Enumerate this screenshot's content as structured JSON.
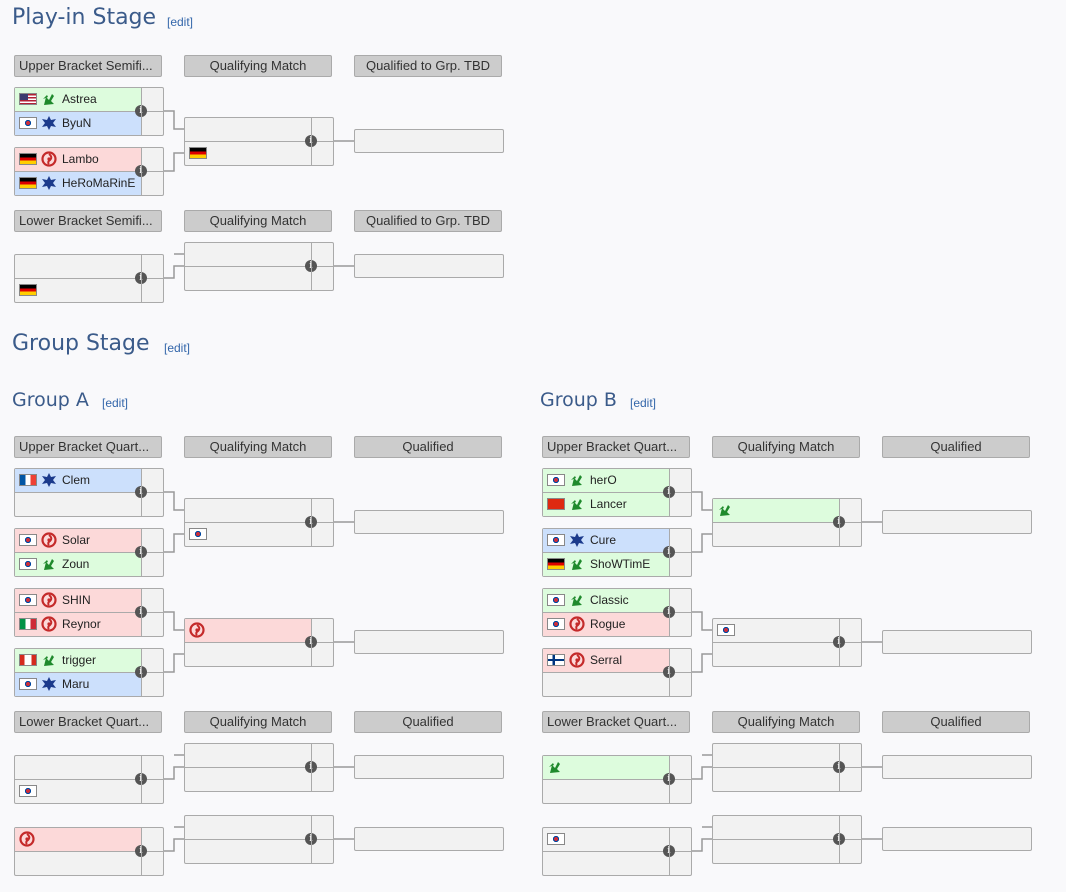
{
  "edit_label": "[edit]",
  "info_glyph": "i",
  "colors": {
    "heading": "#3b5b8a",
    "link": "#3366aa",
    "header_bg": "#cccccc",
    "winner_bg": "#ddfcdd",
    "terran_bg": "#cce0fc",
    "zerg_bg": "#fcd9d9",
    "slot_bg": "#f2f2f2",
    "line": "#999999"
  },
  "race_icons": {
    "protoss": "protoss-icon",
    "terran": "terran-icon",
    "zerg": "zerg-icon"
  },
  "flag_icons": {
    "us": "flag-us-icon",
    "kr": "flag-kr-icon",
    "de": "flag-de-icon",
    "fr": "flag-fr-icon",
    "it": "flag-it-icon",
    "ca": "flag-ca-icon",
    "cn": "flag-cn-icon",
    "fi": "flag-fi-icon"
  },
  "playin": {
    "title": "Play-in Stage",
    "upper": {
      "col1": "Upper Bracket Semifi...",
      "col2": "Qualifying Match",
      "col3": "Qualified to Grp. TBD",
      "sf1": {
        "top": {
          "name": "Astrea",
          "flag": "us",
          "race": "protoss",
          "hl": "win"
        },
        "bot": {
          "name": "ByuN",
          "flag": "kr",
          "race": "terran",
          "hl": "terran"
        }
      },
      "sf2": {
        "top": {
          "name": "Lambo",
          "flag": "de",
          "race": "zerg",
          "hl": "zerg"
        },
        "bot": {
          "name": "HeRoMaRinE",
          "flag": "de",
          "race": "terran",
          "hl": "terran"
        }
      },
      "qm": {
        "top": {
          "name": "",
          "flag": "",
          "race": "",
          "hl": ""
        },
        "bot": {
          "name": "",
          "flag": "de",
          "race": "",
          "hl": ""
        }
      }
    },
    "lower": {
      "col1": "Lower Bracket Semifi...",
      "col2": "Qualifying Match",
      "col3": "Qualified to Grp. TBD",
      "r1": {
        "top": {
          "name": "",
          "flag": "",
          "race": "",
          "hl": ""
        },
        "bot": {
          "name": "",
          "flag": "de",
          "race": "",
          "hl": ""
        }
      },
      "qm": {
        "top": {
          "name": "",
          "flag": "",
          "race": "",
          "hl": ""
        },
        "bot": {
          "name": "",
          "flag": "",
          "race": "",
          "hl": ""
        }
      }
    }
  },
  "group_stage": {
    "title": "Group Stage"
  },
  "group_a": {
    "title": "Group A",
    "upper": {
      "col1": "Upper Bracket Quart...",
      "col2": "Qualifying Match",
      "col3": "Qualified",
      "q1": {
        "top": {
          "name": "Clem",
          "flag": "fr",
          "race": "terran",
          "hl": "terran"
        },
        "bot": {
          "name": "",
          "flag": "",
          "race": "",
          "hl": ""
        }
      },
      "q2": {
        "top": {
          "name": "Solar",
          "flag": "kr",
          "race": "zerg",
          "hl": "zerg"
        },
        "bot": {
          "name": "Zoun",
          "flag": "kr",
          "race": "protoss",
          "hl": "win"
        }
      },
      "q3": {
        "top": {
          "name": "SHIN",
          "flag": "kr",
          "race": "zerg",
          "hl": "zerg"
        },
        "bot": {
          "name": "Reynor",
          "flag": "it",
          "race": "zerg",
          "hl": "zerg"
        }
      },
      "q4": {
        "top": {
          "name": "trigger",
          "flag": "ca",
          "race": "protoss",
          "hl": "win"
        },
        "bot": {
          "name": "Maru",
          "flag": "kr",
          "race": "terran",
          "hl": "terran"
        }
      },
      "qm1": {
        "top": {
          "name": "",
          "flag": "",
          "race": "",
          "hl": ""
        },
        "bot": {
          "name": "",
          "flag": "kr",
          "race": "",
          "hl": ""
        }
      },
      "qm2": {
        "top": {
          "name": "",
          "flag": "",
          "race": "zerg",
          "hl": "zerg"
        },
        "bot": {
          "name": "",
          "flag": "",
          "race": "",
          "hl": ""
        }
      }
    },
    "lower": {
      "col1": "Lower Bracket Quart...",
      "col2": "Qualifying Match",
      "col3": "Qualified",
      "r1": {
        "top": {
          "name": "",
          "flag": "",
          "race": "",
          "hl": ""
        },
        "bot": {
          "name": "",
          "flag": "kr",
          "race": "",
          "hl": ""
        }
      },
      "r2": {
        "top": {
          "name": "",
          "flag": "",
          "race": "zerg",
          "hl": "zerg"
        },
        "bot": {
          "name": "",
          "flag": "",
          "race": "",
          "hl": ""
        }
      },
      "qm1": {
        "top": {
          "name": "",
          "flag": "",
          "race": "",
          "hl": ""
        },
        "bot": {
          "name": "",
          "flag": "",
          "race": "",
          "hl": ""
        }
      },
      "qm2": {
        "top": {
          "name": "",
          "flag": "",
          "race": "",
          "hl": ""
        },
        "bot": {
          "name": "",
          "flag": "",
          "race": "",
          "hl": ""
        }
      }
    }
  },
  "group_b": {
    "title": "Group B",
    "upper": {
      "col1": "Upper Bracket Quart...",
      "col2": "Qualifying Match",
      "col3": "Qualified",
      "q1": {
        "top": {
          "name": "herO",
          "flag": "kr",
          "race": "protoss",
          "hl": "win"
        },
        "bot": {
          "name": "Lancer",
          "flag": "cn",
          "race": "protoss",
          "hl": "win"
        }
      },
      "q2": {
        "top": {
          "name": "Cure",
          "flag": "kr",
          "race": "terran",
          "hl": "terran"
        },
        "bot": {
          "name": "ShoWTimE",
          "flag": "de",
          "race": "protoss",
          "hl": "win"
        }
      },
      "q3": {
        "top": {
          "name": "Classic",
          "flag": "kr",
          "race": "protoss",
          "hl": "win"
        },
        "bot": {
          "name": "Rogue",
          "flag": "kr",
          "race": "zerg",
          "hl": "zerg"
        }
      },
      "q4": {
        "top": {
          "name": "Serral",
          "flag": "fi",
          "race": "zerg",
          "hl": "zerg"
        },
        "bot": {
          "name": "",
          "flag": "",
          "race": "",
          "hl": ""
        }
      },
      "qm1": {
        "top": {
          "name": "",
          "flag": "",
          "race": "protoss",
          "hl": "win"
        },
        "bot": {
          "name": "",
          "flag": "",
          "race": "",
          "hl": ""
        }
      },
      "qm2": {
        "top": {
          "name": "",
          "flag": "kr",
          "race": "",
          "hl": ""
        },
        "bot": {
          "name": "",
          "flag": "",
          "race": "",
          "hl": ""
        }
      }
    },
    "lower": {
      "col1": "Lower Bracket Quart...",
      "col2": "Qualifying Match",
      "col3": "Qualified",
      "r1": {
        "top": {
          "name": "",
          "flag": "",
          "race": "protoss",
          "hl": "win"
        },
        "bot": {
          "name": "",
          "flag": "",
          "race": "",
          "hl": ""
        }
      },
      "r2": {
        "top": {
          "name": "",
          "flag": "kr",
          "race": "",
          "hl": ""
        },
        "bot": {
          "name": "",
          "flag": "",
          "race": "",
          "hl": ""
        }
      },
      "qm1": {
        "top": {
          "name": "",
          "flag": "",
          "race": "",
          "hl": ""
        },
        "bot": {
          "name": "",
          "flag": "",
          "race": "",
          "hl": ""
        }
      },
      "qm2": {
        "top": {
          "name": "",
          "flag": "",
          "race": "",
          "hl": ""
        },
        "bot": {
          "name": "",
          "flag": "",
          "race": "",
          "hl": ""
        }
      }
    }
  }
}
